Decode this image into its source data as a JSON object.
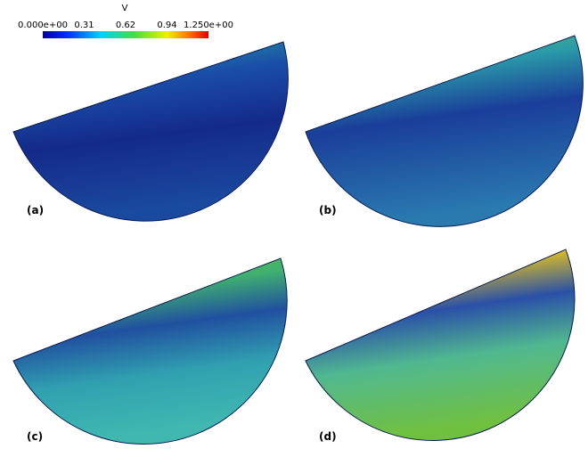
{
  "colorbar": {
    "title": "V",
    "ticks": [
      "0.000e+00",
      "0.31",
      "0.62",
      "0.94",
      "1.250e+00"
    ]
  },
  "panels": [
    {
      "label": "(a)"
    },
    {
      "label": "(b)"
    },
    {
      "label": "(c)"
    },
    {
      "label": "(d)"
    }
  ]
}
